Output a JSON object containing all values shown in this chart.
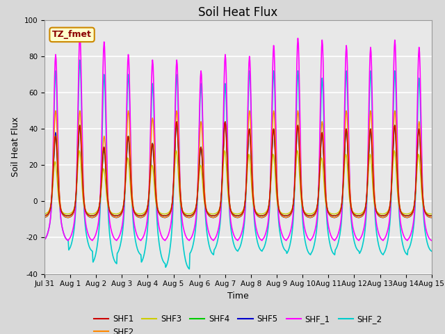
{
  "title": "Soil Heat Flux",
  "xlabel": "Time",
  "ylabel": "Soil Heat Flux",
  "ylim": [
    -40,
    100
  ],
  "xtick_labels": [
    "Jul 31",
    "Aug 1",
    "Aug 2",
    "Aug 3",
    "Aug 4",
    "Aug 5",
    "Aug 6",
    "Aug 7",
    "Aug 8",
    "Aug 9",
    "Aug 10",
    "Aug 11",
    "Aug 12",
    "Aug 13",
    "Aug 14",
    "Aug 15"
  ],
  "series": {
    "SHF1": {
      "color": "#cc0000",
      "lw": 1.0
    },
    "SHF2": {
      "color": "#ff8800",
      "lw": 1.0
    },
    "SHF3": {
      "color": "#cccc00",
      "lw": 1.0
    },
    "SHF4": {
      "color": "#00cc00",
      "lw": 1.0
    },
    "SHF5": {
      "color": "#0000cc",
      "lw": 1.0
    },
    "SHF_1": {
      "color": "#ff00ff",
      "lw": 1.2
    },
    "SHF_2": {
      "color": "#00cccc",
      "lw": 1.2
    }
  },
  "shf1_peaks": [
    36,
    42,
    30,
    36,
    32,
    44,
    30,
    44,
    40,
    40,
    42,
    38,
    40,
    40,
    42,
    40
  ],
  "shf2_peaks": [
    50,
    50,
    30,
    50,
    46,
    50,
    44,
    44,
    50,
    50,
    50,
    44,
    50,
    50,
    50,
    44
  ],
  "shf3_peaks": [
    22,
    28,
    18,
    24,
    20,
    28,
    20,
    28,
    26,
    26,
    28,
    24,
    26,
    26,
    28,
    26
  ],
  "shf4_peaks": [
    36,
    42,
    28,
    36,
    32,
    44,
    30,
    44,
    40,
    40,
    42,
    38,
    40,
    40,
    42,
    40
  ],
  "shf5_peaks": [
    38,
    42,
    30,
    36,
    32,
    44,
    30,
    44,
    40,
    40,
    42,
    38,
    40,
    40,
    42,
    40
  ],
  "shf_1_peaks": [
    81,
    92,
    88,
    81,
    78,
    78,
    72,
    81,
    80,
    86,
    90,
    89,
    86,
    85,
    89,
    85
  ],
  "shf_1_troughs": [
    -8,
    -8,
    -8,
    -8,
    -8,
    -8,
    -8,
    -8,
    -8,
    -8,
    -8,
    -8,
    -8,
    -8,
    -8,
    -8
  ],
  "shf_2_peaks": [
    72,
    78,
    70,
    70,
    65,
    70,
    65,
    65,
    72,
    72,
    72,
    68,
    72,
    72,
    72,
    68
  ],
  "shf_2_troughs": [
    -22,
    -28,
    -35,
    -30,
    -35,
    -38,
    -30,
    -28,
    -28,
    -28,
    -30,
    -30,
    -28,
    -30,
    -30,
    -28
  ],
  "annotation_text": "TZ_fmet",
  "annotation_color": "#8b0000",
  "annotation_bg": "#ffffcc",
  "annotation_border": "#cc8800",
  "fig_bg": "#d8d8d8",
  "plot_bg": "#e8e8e8",
  "grid_color": "#ffffff",
  "title_fontsize": 12,
  "axis_label_fontsize": 9,
  "tick_fontsize": 7.5,
  "legend_fontsize": 8.5
}
